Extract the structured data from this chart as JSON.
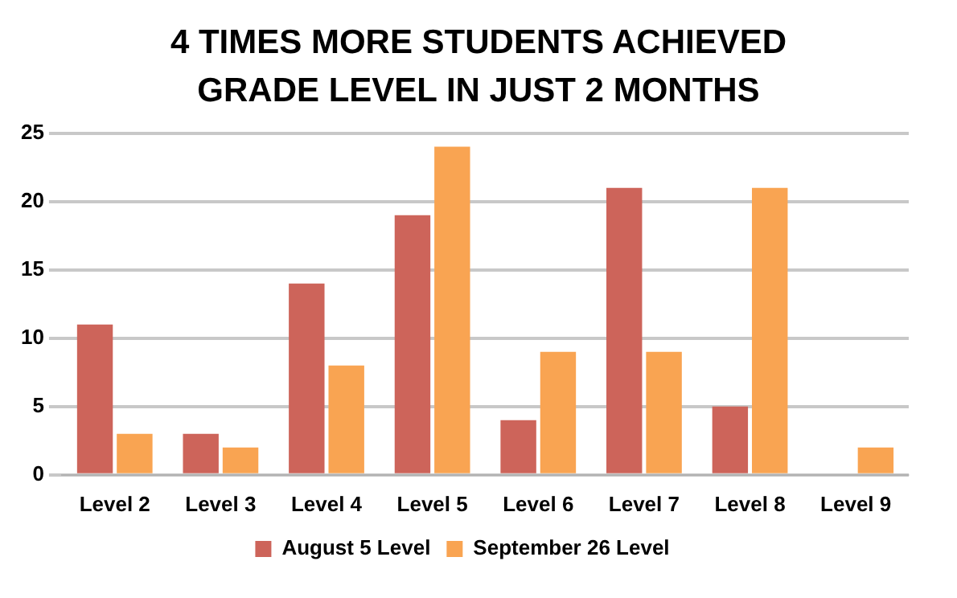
{
  "chart_data": {
    "type": "bar",
    "title": "4 TIMES MORE STUDENTS ACHIEVED GRADE LEVEL IN JUST 2 MONTHS",
    "categories": [
      "Level 2",
      "Level 3",
      "Level 4",
      "Level 5",
      "Level 6",
      "Level 7",
      "Level 8",
      "Level 9"
    ],
    "series": [
      {
        "name": "August 5 Level",
        "color": "#cd645a",
        "values": [
          11,
          3,
          14,
          19,
          4,
          21,
          5,
          0
        ]
      },
      {
        "name": "September 26 Level",
        "color": "#f9a452",
        "values": [
          3,
          2,
          8,
          24,
          9,
          9,
          21,
          2
        ]
      }
    ],
    "ylim": [
      0,
      25
    ],
    "yticks": [
      0,
      5,
      10,
      15,
      20,
      25
    ],
    "grid": "y",
    "legend": "bottom"
  }
}
